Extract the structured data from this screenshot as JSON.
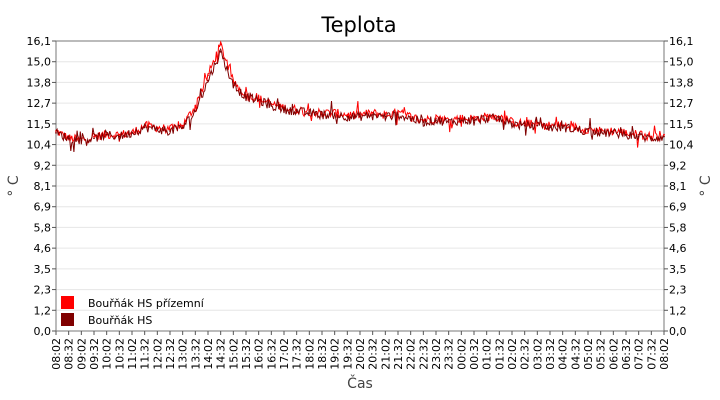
{
  "chart_data": {
    "type": "line",
    "title": "Teplota",
    "xlabel": "Čas",
    "ylabel": "° C",
    "ylim": [
      0.0,
      16.1
    ],
    "yticks": [
      "0,0",
      "1,2",
      "2,3",
      "3,5",
      "4,6",
      "5,8",
      "6,9",
      "8,1",
      "9,2",
      "10,4",
      "11,5",
      "12,7",
      "13,8",
      "15,0",
      "16,1"
    ],
    "ytick_values": [
      0.0,
      1.15,
      2.3,
      3.45,
      4.6,
      5.75,
      6.9,
      8.05,
      9.2,
      10.35,
      11.5,
      12.65,
      13.8,
      14.95,
      16.1
    ],
    "categories": [
      "08:02",
      "08:32",
      "09:02",
      "09:32",
      "10:02",
      "10:32",
      "11:02",
      "11:32",
      "12:02",
      "12:32",
      "13:02",
      "13:32",
      "14:02",
      "14:32",
      "15:02",
      "15:32",
      "16:02",
      "16:32",
      "17:02",
      "17:32",
      "18:02",
      "18:32",
      "19:02",
      "19:32",
      "20:02",
      "20:32",
      "21:02",
      "21:32",
      "22:02",
      "22:32",
      "23:02",
      "23:32",
      "00:02",
      "00:32",
      "01:02",
      "01:32",
      "02:02",
      "02:32",
      "03:02",
      "03:32",
      "04:02",
      "04:32",
      "05:02",
      "05:32",
      "06:02",
      "06:32",
      "07:02",
      "07:32",
      "08:02"
    ],
    "grid": true,
    "legend_position": "bottom-left",
    "series": [
      {
        "name": "Bouřňák HS přízemní",
        "color": "#ff0000",
        "values": [
          11.1,
          10.7,
          10.6,
          10.8,
          10.9,
          10.9,
          11.0,
          11.4,
          11.3,
          11.2,
          11.4,
          12.5,
          14.2,
          15.9,
          13.8,
          13.1,
          12.9,
          12.6,
          12.4,
          12.3,
          12.2,
          12.1,
          12.1,
          12.0,
          12.0,
          12.1,
          12.0,
          12.1,
          11.9,
          11.7,
          11.8,
          11.7,
          11.8,
          11.8,
          11.9,
          11.9,
          11.6,
          11.5,
          11.5,
          11.4,
          11.4,
          11.3,
          11.2,
          11.1,
          11.1,
          11.0,
          10.9,
          10.8,
          10.9
        ]
      },
      {
        "name": "Bouřňák HS",
        "color": "#800000",
        "values": [
          11.0,
          10.7,
          10.6,
          10.7,
          10.9,
          10.8,
          11.0,
          11.3,
          11.2,
          11.1,
          11.3,
          12.2,
          13.9,
          15.5,
          13.6,
          13.0,
          12.8,
          12.5,
          12.3,
          12.2,
          12.1,
          12.0,
          12.0,
          11.9,
          11.9,
          12.0,
          11.9,
          12.0,
          11.8,
          11.6,
          11.7,
          11.6,
          11.7,
          11.7,
          11.8,
          11.8,
          11.5,
          11.4,
          11.4,
          11.3,
          11.3,
          11.2,
          11.1,
          11.0,
          11.0,
          10.9,
          10.8,
          10.7,
          10.8
        ]
      }
    ]
  }
}
